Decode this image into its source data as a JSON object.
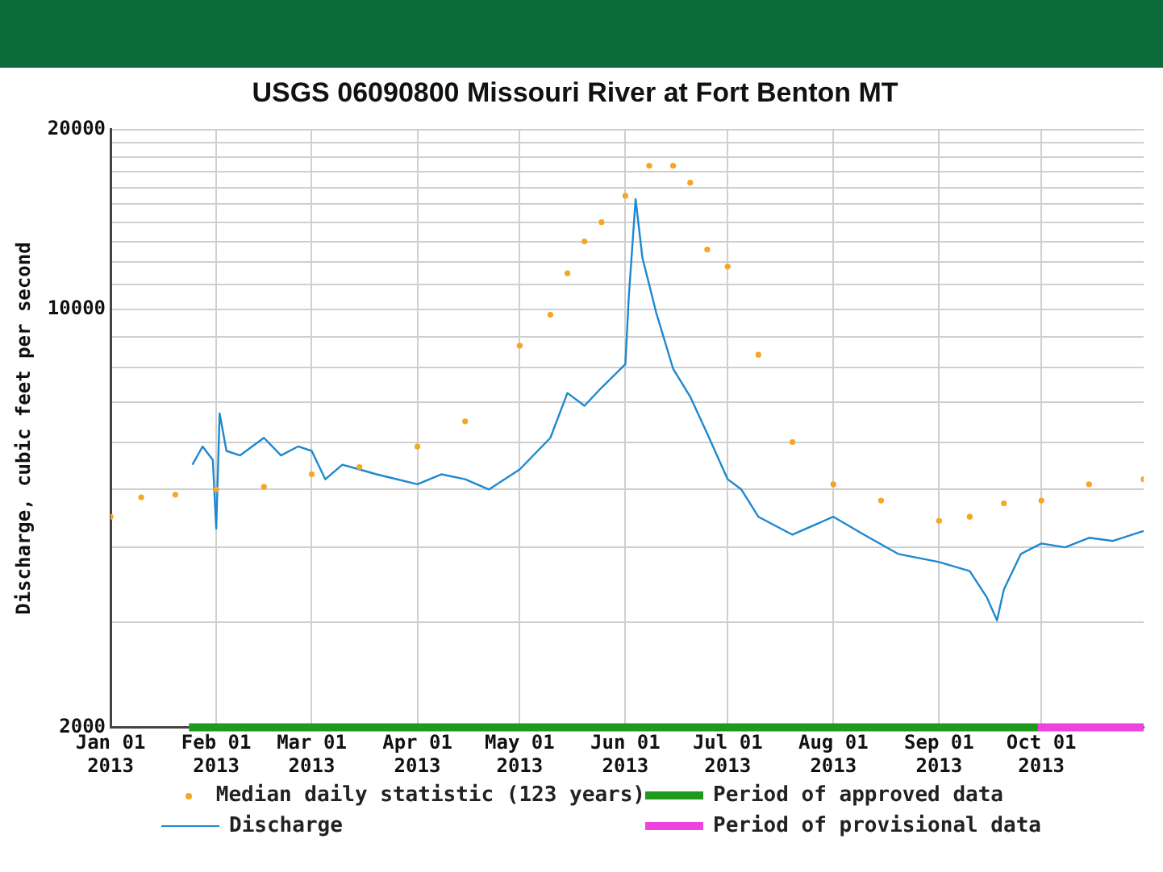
{
  "chart_data": {
    "type": "line",
    "title": "USGS 06090800 Missouri River at Fort Benton MT",
    "ylabel": "Discharge, cubic feet per second",
    "log": "y",
    "xlim": [
      "2013-01-01",
      "2013-10-31"
    ],
    "xticks": [
      {
        "value": "2013-01-01",
        "label": "Jan 01\n2013"
      },
      {
        "value": "2013-02-01",
        "label": "Feb 01\n2013"
      },
      {
        "value": "2013-03-01",
        "label": "Mar 01\n2013"
      },
      {
        "value": "2013-04-01",
        "label": "Apr 01\n2013"
      },
      {
        "value": "2013-05-01",
        "label": "May 01\n2013"
      },
      {
        "value": "2013-06-01",
        "label": "Jun 01\n2013"
      },
      {
        "value": "2013-07-01",
        "label": "Jul 01\n2013"
      },
      {
        "value": "2013-08-01",
        "label": "Aug 01\n2013"
      },
      {
        "value": "2013-09-01",
        "label": "Sep 01\n2013"
      },
      {
        "value": "2013-10-01",
        "label": "Oct 01\n2013"
      }
    ],
    "ylim": [
      2000,
      20000
    ],
    "yticks": [
      2000,
      {
        "value": 3000,
        "label": null
      },
      {
        "value": 4000,
        "label": null
      },
      {
        "value": 5000,
        "label": null
      },
      {
        "value": 6000,
        "label": null
      },
      {
        "value": 7000,
        "label": null
      },
      {
        "value": 8000,
        "label": null
      },
      {
        "value": 9000,
        "label": null
      },
      10000,
      {
        "value": 11000,
        "label": null
      },
      {
        "value": 12000,
        "label": null
      },
      {
        "value": 13000,
        "label": null
      },
      {
        "value": 14000,
        "label": null
      },
      {
        "value": 15000,
        "label": null
      },
      {
        "value": 16000,
        "label": null
      },
      {
        "value": 17000,
        "label": null
      },
      {
        "value": 18000,
        "label": null
      },
      {
        "value": 19000,
        "label": null
      },
      20000
    ],
    "grid": true,
    "legend": "bottom",
    "series": [
      {
        "name": "Median daily statistic (123 years)",
        "type": "scatter",
        "marker": "circle",
        "color": "#f5a623",
        "x": [
          "2013-01-01",
          "2013-01-10",
          "2013-01-20",
          "2013-02-01",
          "2013-02-15",
          "2013-03-01",
          "2013-03-15",
          "2013-04-01",
          "2013-04-15",
          "2013-05-01",
          "2013-05-10",
          "2013-05-15",
          "2013-05-20",
          "2013-05-25",
          "2013-06-01",
          "2013-06-08",
          "2013-06-15",
          "2013-06-20",
          "2013-06-25",
          "2013-07-01",
          "2013-07-10",
          "2013-07-20",
          "2013-08-01",
          "2013-08-15",
          "2013-09-01",
          "2013-09-10",
          "2013-09-20",
          "2013-10-01",
          "2013-10-15",
          "2013-10-31"
        ],
        "values": [
          4500,
          4850,
          4900,
          5000,
          5050,
          5300,
          5450,
          5900,
          6500,
          8700,
          9800,
          11500,
          13000,
          14000,
          15500,
          17400,
          17400,
          16300,
          12600,
          11800,
          8400,
          6000,
          5100,
          4790,
          4430,
          4500,
          4740,
          4790,
          5100,
          5200
        ]
      },
      {
        "name": "Period of approved data",
        "type": "line",
        "marker": "none",
        "line_style": "solid",
        "color": "#1e9a1e",
        "x": [
          "2013-01-24",
          "2013-09-30"
        ],
        "values": [
          2000,
          2000
        ]
      },
      {
        "name": "Discharge",
        "type": "line",
        "marker": "none",
        "line_style": "solid",
        "color": "#1e88d0",
        "x": [
          "2013-01-25",
          "2013-01-28",
          "2013-01-31",
          "2013-02-01",
          "2013-02-02",
          "2013-02-04",
          "2013-02-08",
          "2013-02-15",
          "2013-02-20",
          "2013-02-25",
          "2013-03-01",
          "2013-03-05",
          "2013-03-10",
          "2013-03-15",
          "2013-03-20",
          "2013-04-01",
          "2013-04-08",
          "2013-04-15",
          "2013-04-22",
          "2013-05-01",
          "2013-05-10",
          "2013-05-15",
          "2013-05-20",
          "2013-05-25",
          "2013-06-01",
          "2013-06-02",
          "2013-06-04",
          "2013-06-06",
          "2013-06-08",
          "2013-06-10",
          "2013-06-15",
          "2013-06-20",
          "2013-06-25",
          "2013-07-01",
          "2013-07-05",
          "2013-07-10",
          "2013-07-20",
          "2013-08-01",
          "2013-08-10",
          "2013-08-20",
          "2013-09-01",
          "2013-09-10",
          "2013-09-15",
          "2013-09-18",
          "2013-09-20",
          "2013-09-25",
          "2013-10-01",
          "2013-10-08",
          "2013-10-15",
          "2013-10-22",
          "2013-10-31"
        ],
        "values": [
          5500,
          5900,
          5600,
          4300,
          6700,
          5800,
          5700,
          6100,
          5700,
          5900,
          5800,
          5200,
          5500,
          5400,
          5300,
          5100,
          5300,
          5200,
          5000,
          5400,
          6100,
          7250,
          6900,
          7400,
          8100,
          10500,
          15300,
          12200,
          11000,
          9900,
          7960,
          7150,
          6200,
          5200,
          5000,
          4500,
          4200,
          4500,
          4200,
          3900,
          3780,
          3650,
          3300,
          3020,
          3400,
          3900,
          4060,
          4000,
          4150,
          4100,
          4260
        ]
      },
      {
        "name": "Period of provisional data",
        "type": "line",
        "marker": "none",
        "line_style": "solid",
        "color": "#ee44dd",
        "x": [
          "2013-09-30",
          "2013-10-31"
        ],
        "values": [
          2000,
          2000
        ]
      }
    ]
  }
}
